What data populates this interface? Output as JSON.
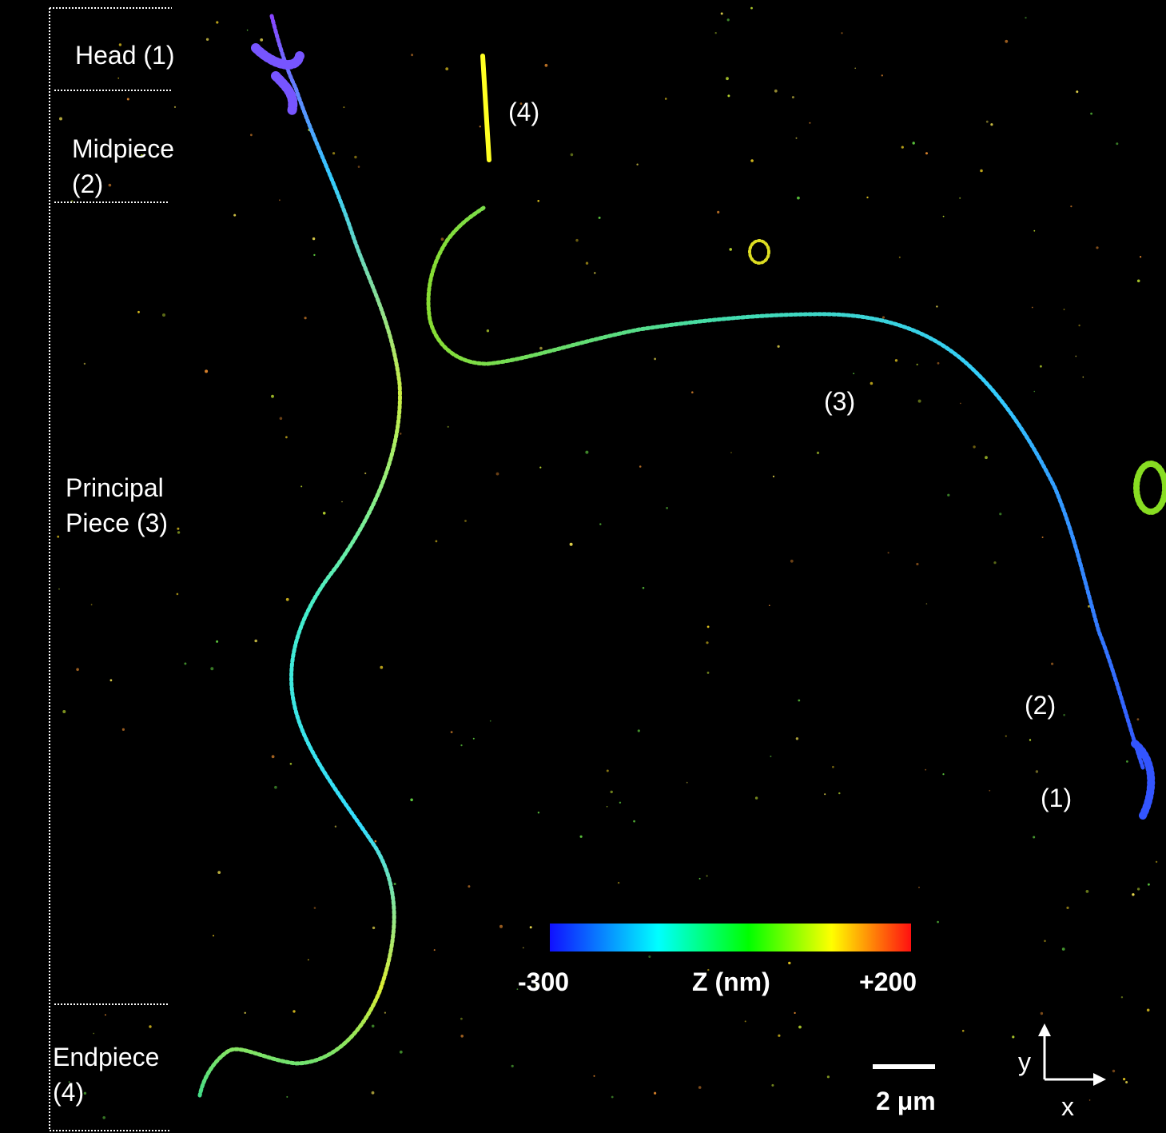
{
  "regions": [
    "Head (1)",
    "Midpiece (2)",
    "Principal Piece (3)",
    "Endpiece (4)"
  ],
  "annotations": [
    "(4)",
    "(3)",
    "(2)",
    "(1)"
  ],
  "colorbar": {
    "min_label": "-300",
    "title": "Z (nm)",
    "max_label": "+200"
  },
  "scale_bar": "2 μm",
  "axes": {
    "y": "y",
    "x": "x"
  }
}
